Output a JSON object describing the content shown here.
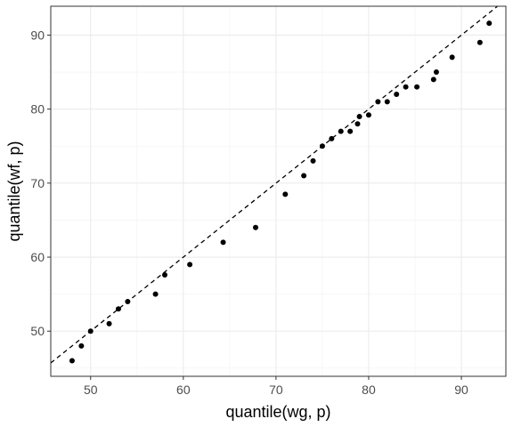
{
  "chart_data": {
    "type": "scatter",
    "xlabel": "quantile(wg, p)",
    "ylabel": "quantile(wf, p)",
    "xlim": [
      45.7,
      94.8
    ],
    "ylim": [
      43.9,
      93.9
    ],
    "x_ticks": [
      50,
      60,
      70,
      80,
      90
    ],
    "y_ticks": [
      50,
      60,
      70,
      80,
      90
    ],
    "x_minor": [
      45,
      55,
      65,
      75,
      85
    ],
    "y_minor": [
      45,
      55,
      65,
      75,
      85
    ],
    "grid": true,
    "points": [
      {
        "x": 48,
        "y": 46
      },
      {
        "x": 49,
        "y": 48
      },
      {
        "x": 50,
        "y": 50
      },
      {
        "x": 52,
        "y": 51
      },
      {
        "x": 53,
        "y": 53
      },
      {
        "x": 54,
        "y": 54
      },
      {
        "x": 57,
        "y": 55
      },
      {
        "x": 58,
        "y": 57.6
      },
      {
        "x": 60.7,
        "y": 59
      },
      {
        "x": 64.3,
        "y": 62
      },
      {
        "x": 67.8,
        "y": 64
      },
      {
        "x": 71,
        "y": 68.5
      },
      {
        "x": 73,
        "y": 71
      },
      {
        "x": 74,
        "y": 73
      },
      {
        "x": 75,
        "y": 75
      },
      {
        "x": 76,
        "y": 76
      },
      {
        "x": 77,
        "y": 77
      },
      {
        "x": 78,
        "y": 77
      },
      {
        "x": 78.8,
        "y": 78
      },
      {
        "x": 79,
        "y": 79
      },
      {
        "x": 80,
        "y": 79.2
      },
      {
        "x": 81,
        "y": 81
      },
      {
        "x": 82,
        "y": 81
      },
      {
        "x": 83,
        "y": 82
      },
      {
        "x": 84,
        "y": 83
      },
      {
        "x": 85.2,
        "y": 83
      },
      {
        "x": 87,
        "y": 84
      },
      {
        "x": 87.3,
        "y": 85
      },
      {
        "x": 89,
        "y": 87
      },
      {
        "x": 92,
        "y": 89
      },
      {
        "x": 93,
        "y": 91.6
      }
    ],
    "reference_line": {
      "slope": 1,
      "intercept": 0,
      "style": "dashed"
    }
  }
}
